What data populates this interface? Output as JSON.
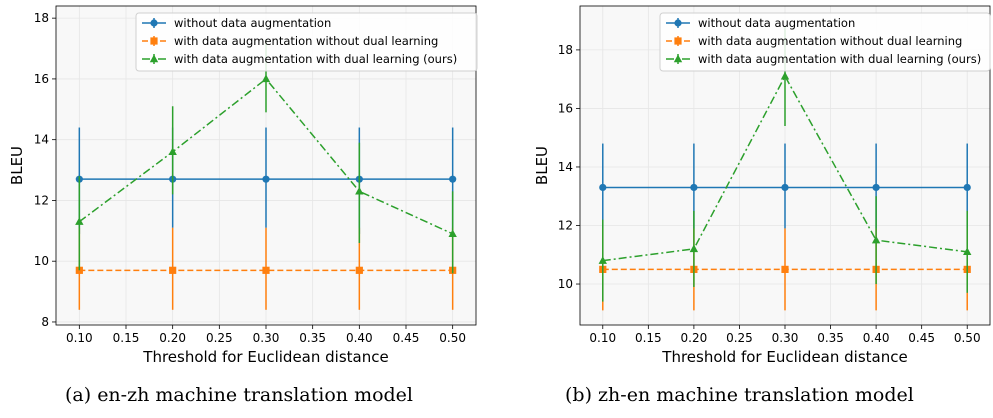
{
  "captions": {
    "a": "(a) en-zh machine translation model",
    "b": "(b) zh-en machine translation model"
  },
  "colors": {
    "blue": "#1f77b4",
    "orange": "#ff7f0e",
    "green": "#2ca02c"
  },
  "chart_data": [
    {
      "type": "line",
      "panel": "a",
      "xlabel": "Threshold for Euclidean distance",
      "ylabel": "BLEU",
      "x": [
        0.1,
        0.2,
        0.3,
        0.4,
        0.5
      ],
      "x_tick_labels": [
        "0.10",
        "0.15",
        "0.20",
        "0.25",
        "0.30",
        "0.35",
        "0.40",
        "0.45",
        "0.50"
      ],
      "y_tick_labels": [
        "8",
        "10",
        "12",
        "14",
        "16",
        "18"
      ],
      "xlim": [
        0.075,
        0.525
      ],
      "ylim": [
        7.9,
        18.4
      ],
      "grid": true,
      "legend_position": "top-center",
      "series": [
        {
          "name": "without data augmentation",
          "color": "#1f77b4",
          "marker": "circle",
          "linestyle": "solid",
          "values": [
            12.7,
            12.7,
            12.7,
            12.7,
            12.7
          ],
          "err_low": [
            10.9,
            11.1,
            11.1,
            10.9,
            10.9
          ],
          "err_high": [
            14.4,
            14.4,
            14.4,
            14.4,
            14.4
          ]
        },
        {
          "name": "with data augmentation without dual learning",
          "color": "#ff7f0e",
          "marker": "square",
          "linestyle": "dashed",
          "values": [
            9.7,
            9.7,
            9.7,
            9.7,
            9.7
          ],
          "err_low": [
            8.4,
            8.4,
            8.4,
            8.4,
            8.4
          ],
          "err_high": [
            11.1,
            11.1,
            11.1,
            11.1,
            11.1
          ]
        },
        {
          "name": "with data augmentation with dual learning (ours)",
          "color": "#2ca02c",
          "marker": "triangle",
          "linestyle": "dashdot",
          "values": [
            11.3,
            13.6,
            16.0,
            12.3,
            10.9
          ],
          "err_low": [
            9.7,
            12.2,
            14.9,
            10.6,
            9.6
          ],
          "err_high": [
            12.8,
            15.1,
            17.3,
            13.9,
            12.3
          ]
        }
      ]
    },
    {
      "type": "line",
      "panel": "b",
      "xlabel": "Threshold for Euclidean distance",
      "ylabel": "BLEU",
      "x": [
        0.1,
        0.2,
        0.3,
        0.4,
        0.5
      ],
      "x_tick_labels": [
        "0.10",
        "0.15",
        "0.20",
        "0.25",
        "0.30",
        "0.35",
        "0.40",
        "0.45",
        "0.50"
      ],
      "y_tick_labels": [
        "10",
        "12",
        "14",
        "16",
        "18"
      ],
      "xlim": [
        0.075,
        0.525
      ],
      "ylim": [
        8.6,
        19.5
      ],
      "grid": true,
      "legend_position": "top-right",
      "series": [
        {
          "name": "without data augmentation",
          "color": "#1f77b4",
          "marker": "circle",
          "linestyle": "solid",
          "values": [
            13.3,
            13.3,
            13.3,
            13.3,
            13.3
          ],
          "err_low": [
            11.9,
            11.9,
            11.9,
            11.9,
            11.9
          ],
          "err_high": [
            14.8,
            14.8,
            14.8,
            14.8,
            14.8
          ]
        },
        {
          "name": "with data augmentation without dual learning",
          "color": "#ff7f0e",
          "marker": "square",
          "linestyle": "dashed",
          "values": [
            10.5,
            10.5,
            10.5,
            10.5,
            10.5
          ],
          "err_low": [
            9.1,
            9.1,
            9.1,
            9.1,
            9.1
          ],
          "err_high": [
            11.9,
            11.9,
            11.9,
            11.9,
            11.9
          ]
        },
        {
          "name": "with data augmentation with dual learning (ours)",
          "color": "#2ca02c",
          "marker": "triangle",
          "linestyle": "dashdot",
          "values": [
            10.8,
            11.2,
            17.1,
            11.5,
            11.1
          ],
          "err_low": [
            9.4,
            9.9,
            15.4,
            10.0,
            9.7
          ],
          "err_high": [
            12.2,
            12.5,
            18.8,
            13.0,
            12.5
          ]
        }
      ]
    }
  ]
}
